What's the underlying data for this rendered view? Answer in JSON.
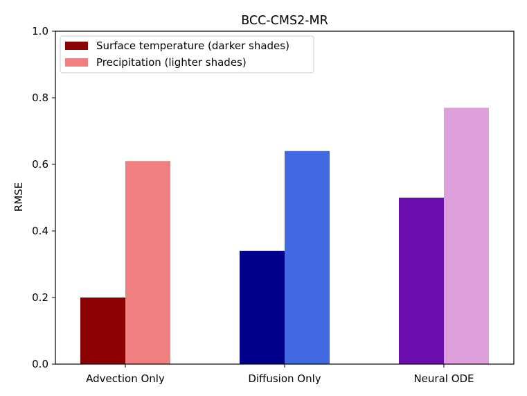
{
  "chart_data": {
    "type": "bar",
    "title": "BCC-CMS2-MR",
    "xlabel": "",
    "ylabel": "RMSE",
    "ylim": [
      0,
      1.0
    ],
    "yticks": [
      0.0,
      0.2,
      0.4,
      0.6,
      0.8,
      1.0
    ],
    "ytick_labels": [
      "0.0",
      "0.2",
      "0.4",
      "0.6",
      "0.8",
      "1.0"
    ],
    "grid": false,
    "categories": [
      "Advection Only",
      "Diffusion Only",
      "Neural ODE"
    ],
    "series": [
      {
        "name": "Surface temperature (darker shades)",
        "values": [
          0.2,
          0.34,
          0.5
        ],
        "colors": [
          "#8b0000",
          "#00008b",
          "#6a0dad"
        ],
        "legend_color": "#8b0000"
      },
      {
        "name": "Precipitation (lighter shades)",
        "values": [
          0.61,
          0.64,
          0.77
        ],
        "colors": [
          "#f08080",
          "#4169e1",
          "#dda0dd"
        ],
        "legend_color": "#f08080"
      }
    ],
    "legend_position": "top-left"
  }
}
